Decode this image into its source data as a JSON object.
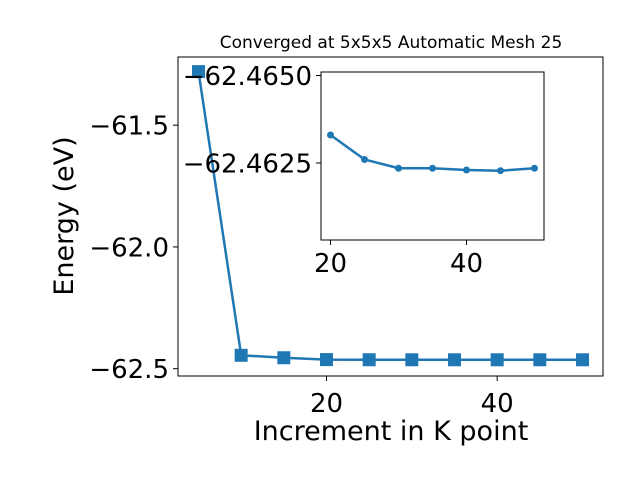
{
  "chart_data": [
    {
      "type": "line",
      "title": "Converged at 5x5x5 Automatic Mesh 25",
      "xlabel": "Increment in K point",
      "ylabel": "Energy (eV)",
      "xlim": [
        2.6,
        52.4
      ],
      "ylim": [
        -62.53,
        -61.22
      ],
      "xticks": [
        20,
        40
      ],
      "xtick_labels": [
        "20",
        "40"
      ],
      "yticks": [
        -61.5,
        -62.0,
        -62.5
      ],
      "ytick_labels": [
        "−61.5",
        "−62.0",
        "−62.5"
      ],
      "grid": false,
      "marker": "square",
      "color": "#1f77b4",
      "series": [
        {
          "x": [
            5,
            10,
            15,
            20,
            25,
            30,
            35,
            40,
            45,
            50
          ],
          "y": [
            -61.28,
            -62.445,
            -62.455,
            -62.4626,
            -62.4632,
            -62.4634,
            -62.4634,
            -62.4634,
            -62.4634,
            -62.4634
          ]
        }
      ]
    },
    {
      "type": "line",
      "title": "",
      "xlim": [
        18.6,
        51.4
      ],
      "ylim": [
        -62.4603,
        -62.4651
      ],
      "xticks": [
        20,
        40
      ],
      "xtick_labels": [
        "20",
        "40"
      ],
      "yticks": [
        -62.465,
        -62.4625
      ],
      "ytick_labels": [
        "−62.4650",
        "−62.4625"
      ],
      "grid": false,
      "marker": "circle",
      "color": "#1f77b4",
      "series": [
        {
          "x": [
            20,
            25,
            30,
            35,
            40,
            45,
            50
          ],
          "y": [
            -62.4633,
            -62.4626,
            -62.46235,
            -62.46235,
            -62.4623,
            -62.46228,
            -62.46235
          ]
        }
      ]
    }
  ]
}
